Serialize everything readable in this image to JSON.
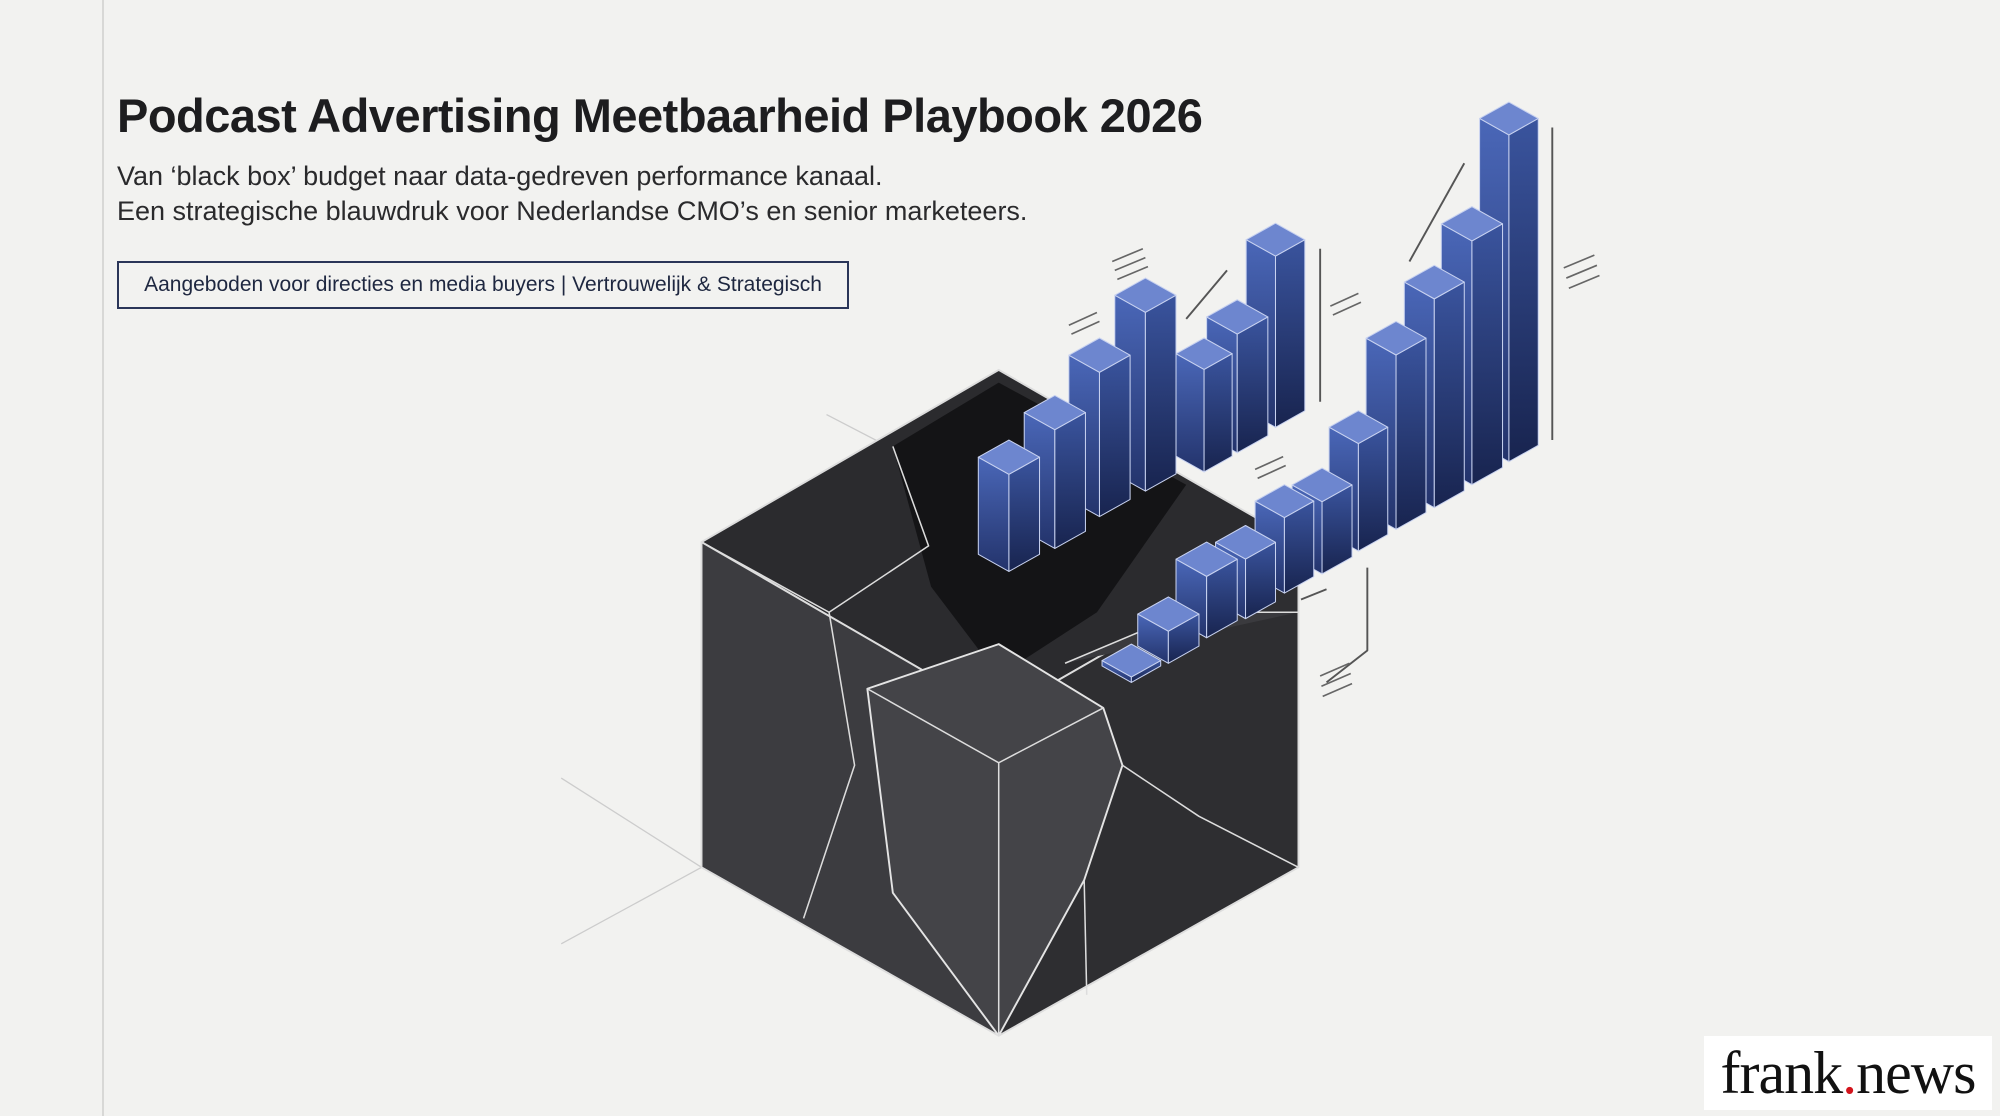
{
  "header": {
    "title": "Podcast Advertising Meetbaarheid Playbook 2026",
    "subtitle": [
      "Van ‘black box’ budget naar data-gedreven performance kanaal.",
      "Een strategische blauwdruk voor Nederlandse CMO’s en senior marketeers."
    ],
    "tag": "Aangeboden voor directies en media buyers | Vertrouwelijk & Strategisch"
  },
  "logo": {
    "name": "frank",
    "dot": ".",
    "suffix": "news"
  }
}
